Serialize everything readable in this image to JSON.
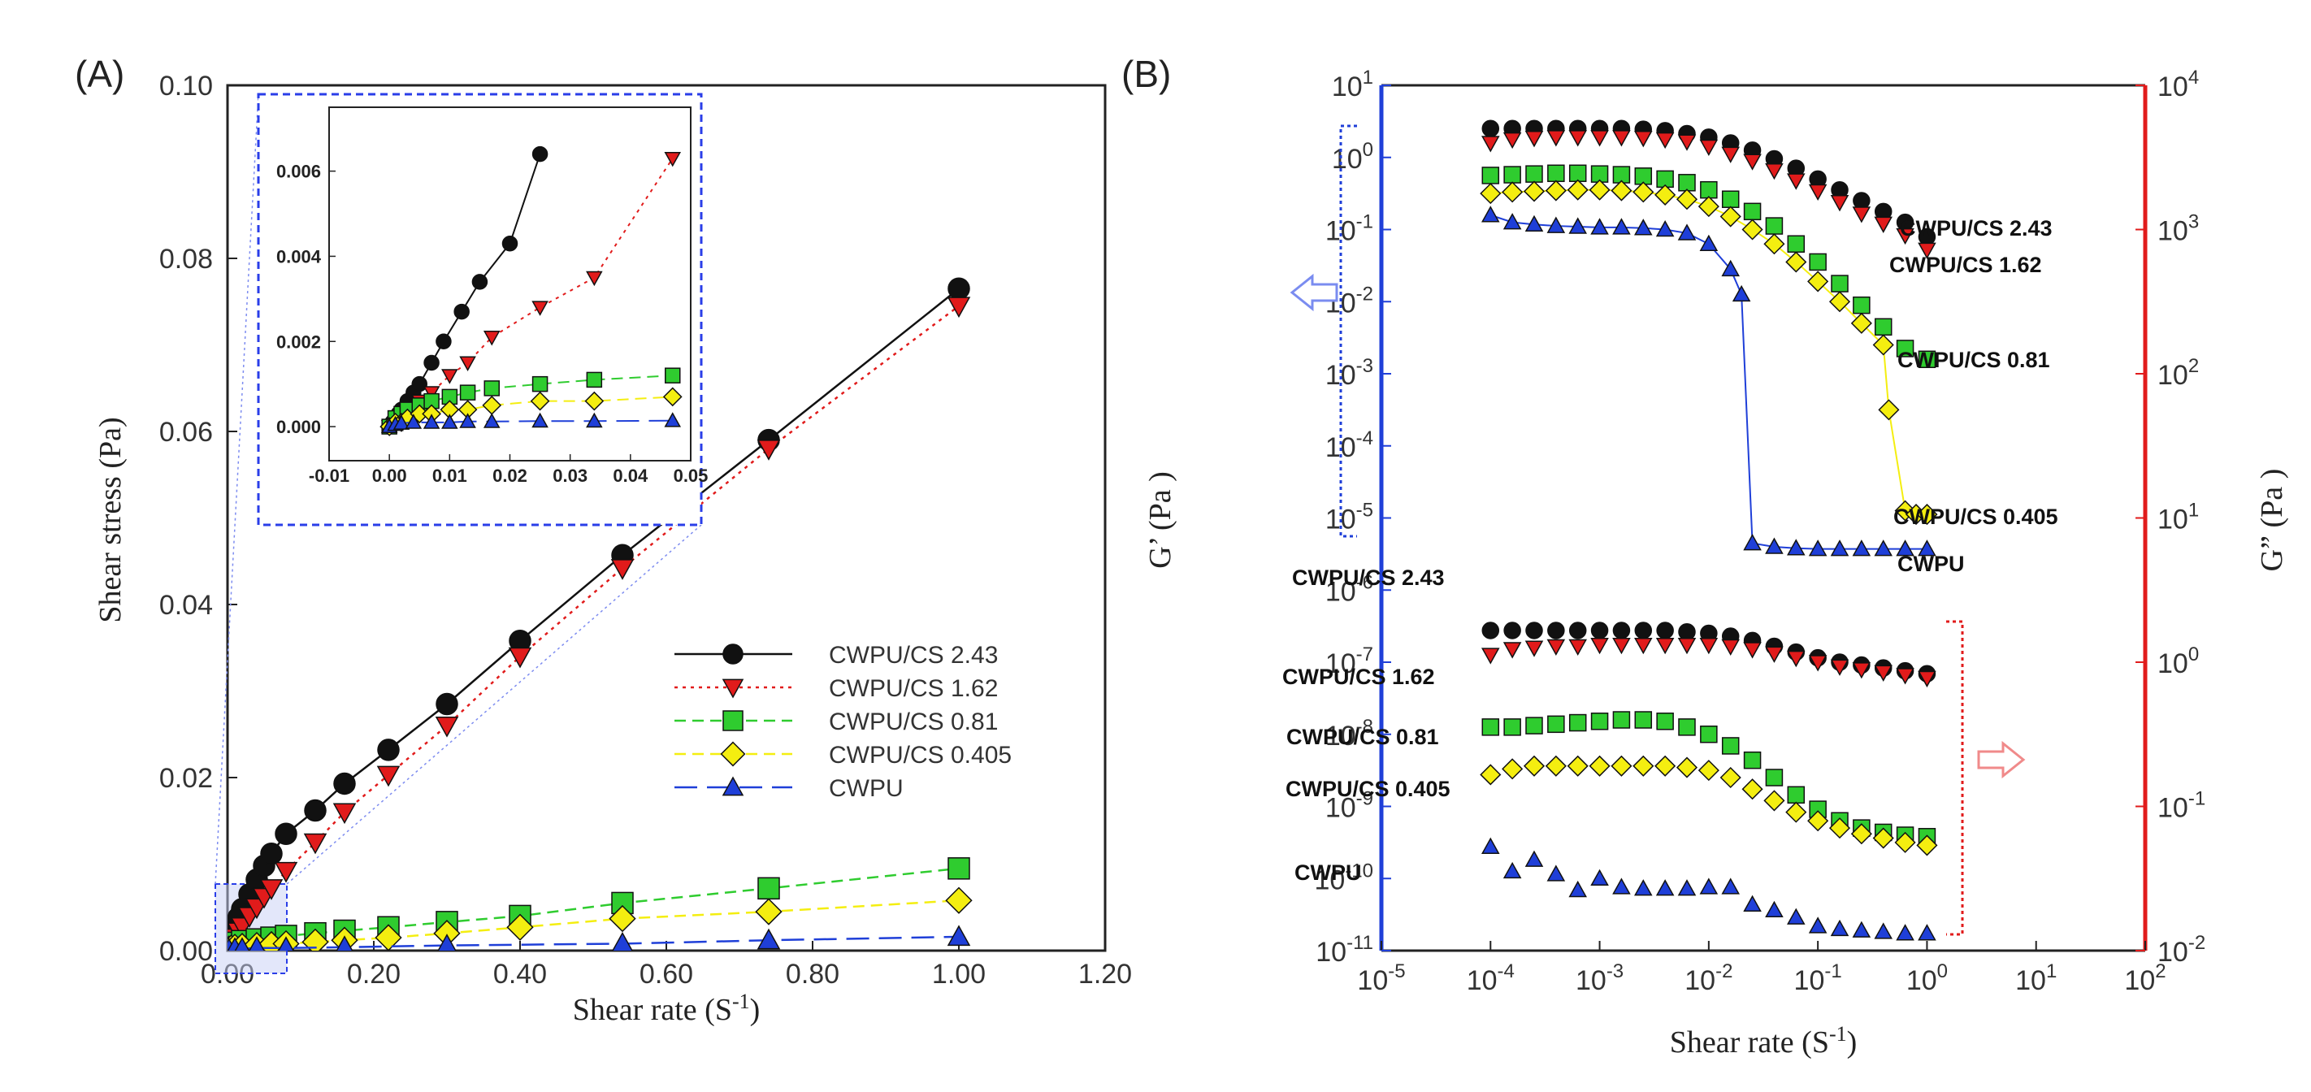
{
  "colors": {
    "s243": "#111111",
    "s162": "#e11b1b",
    "s081": "#2fcc2f",
    "s0405": "#f4ee10",
    "cwpu": "#1f3fd8",
    "axis_left": "#1f3fd8",
    "axis_right": "#e11b1b",
    "inset_box": "#2a3ee8"
  },
  "icons": {
    "arrow_left": "hollow-arrow-left-icon",
    "arrow_right": "hollow-arrow-right-icon"
  },
  "chart_data": [
    {
      "type": "line",
      "panel_label": "(A)",
      "xlabel": "Shear rate (S",
      "xlabel_sup": "-1",
      "xlabel_close": ")",
      "ylabel": "Shear stress (Pa)",
      "xlim": [
        0,
        1.2
      ],
      "ylim": [
        0,
        0.1
      ],
      "x_ticks": [
        "0.00",
        "0.20",
        "0.40",
        "0.60",
        "0.80",
        "1.00",
        "1.20"
      ],
      "y_ticks": [
        "0.00",
        "0.02",
        "0.04",
        "0.06",
        "0.08",
        "0.10"
      ],
      "legend_position": "center-right",
      "series": [
        {
          "name": "CWPU/CS 2.43",
          "marker": "circle",
          "line": "solid",
          "x": [
            0.002,
            0.005,
            0.01,
            0.015,
            0.02,
            0.03,
            0.04,
            0.05,
            0.06,
            0.08,
            0.12,
            0.16,
            0.22,
            0.3,
            0.4,
            0.54,
            0.74,
            1.0
          ],
          "y": [
            0.0005,
            0.001,
            0.0025,
            0.0038,
            0.0048,
            0.0065,
            0.0082,
            0.0098,
            0.0112,
            0.0135,
            0.0162,
            0.0193,
            0.0232,
            0.0285,
            0.0358,
            0.0457,
            0.059,
            0.0765
          ]
        },
        {
          "name": "CWPU/CS 1.62",
          "marker": "triangle-down",
          "line": "dotted",
          "x": [
            0.002,
            0.005,
            0.01,
            0.015,
            0.02,
            0.03,
            0.04,
            0.05,
            0.06,
            0.08,
            0.12,
            0.16,
            0.22,
            0.3,
            0.4,
            0.54,
            0.74,
            1.0
          ],
          "y": [
            0.0003,
            0.0008,
            0.0015,
            0.0022,
            0.0028,
            0.004,
            0.005,
            0.0062,
            0.0072,
            0.0092,
            0.0125,
            0.016,
            0.0203,
            0.026,
            0.034,
            0.0442,
            0.058,
            0.0745
          ]
        },
        {
          "name": "CWPU/CS 0.81",
          "marker": "square",
          "line": "dashed",
          "x": [
            0.002,
            0.005,
            0.01,
            0.02,
            0.04,
            0.06,
            0.08,
            0.12,
            0.16,
            0.22,
            0.3,
            0.4,
            0.54,
            0.74,
            1.0
          ],
          "y": [
            0.0003,
            0.0006,
            0.0009,
            0.0011,
            0.0013,
            0.0015,
            0.0017,
            0.002,
            0.0023,
            0.0027,
            0.0033,
            0.004,
            0.0055,
            0.0072,
            0.0095
          ]
        },
        {
          "name": "CWPU/CS 0.405",
          "marker": "diamond",
          "line": "dashed",
          "x": [
            0.002,
            0.005,
            0.01,
            0.02,
            0.04,
            0.06,
            0.08,
            0.12,
            0.16,
            0.22,
            0.3,
            0.4,
            0.54,
            0.74,
            1.0
          ],
          "y": [
            0.0002,
            0.0003,
            0.0004,
            0.0005,
            0.0006,
            0.0007,
            0.0008,
            0.001,
            0.0012,
            0.0015,
            0.002,
            0.0027,
            0.0037,
            0.0045,
            0.0058
          ]
        },
        {
          "name": "CWPU",
          "marker": "triangle-up",
          "line": "longdash",
          "x": [
            0.002,
            0.01,
            0.02,
            0.04,
            0.08,
            0.16,
            0.3,
            0.54,
            0.74,
            1.0
          ],
          "y": [
            0.0001,
            0.0002,
            0.0002,
            0.0003,
            0.0003,
            0.0004,
            0.0006,
            0.0008,
            0.0012,
            0.0016
          ]
        }
      ],
      "inset": {
        "xlim": [
          -0.01,
          0.05
        ],
        "ylim": [
          -0.0008,
          0.0075
        ],
        "x_ticks": [
          "-0.01",
          "0.00",
          "0.01",
          "0.02",
          "0.03",
          "0.04",
          "0.05"
        ],
        "y_ticks": [
          "0.000",
          "0.002",
          "0.004",
          "0.006"
        ],
        "series": [
          {
            "name": "CWPU/CS 2.43",
            "x": [
              0,
              0.0005,
              0.001,
              0.0015,
              0.002,
              0.003,
              0.004,
              0.005,
              0.007,
              0.009,
              0.012,
              0.015,
              0.02,
              0.025
            ],
            "y": [
              0,
              0.0001,
              0.0002,
              0.0003,
              0.0004,
              0.0006,
              0.0008,
              0.001,
              0.0015,
              0.002,
              0.0027,
              0.0034,
              0.0043,
              0.0064
            ]
          },
          {
            "name": "CWPU/CS 1.62",
            "x": [
              0,
              0.001,
              0.002,
              0.003,
              0.005,
              0.007,
              0.01,
              0.013,
              0.017,
              0.025,
              0.034,
              0.047
            ],
            "y": [
              0,
              0.0001,
              0.0002,
              0.0003,
              0.0006,
              0.0008,
              0.0012,
              0.0015,
              0.0021,
              0.0028,
              0.0035,
              0.0063
            ]
          },
          {
            "name": "CWPU/CS 0.81",
            "x": [
              0,
              0.001,
              0.002,
              0.003,
              0.005,
              0.007,
              0.01,
              0.013,
              0.017,
              0.025,
              0.034,
              0.047
            ],
            "y": [
              0,
              0.0002,
              0.0003,
              0.0004,
              0.0005,
              0.0006,
              0.0007,
              0.0008,
              0.0009,
              0.001,
              0.0011,
              0.0012
            ]
          },
          {
            "name": "CWPU/CS 0.405",
            "x": [
              0,
              0.001,
              0.002,
              0.003,
              0.005,
              0.007,
              0.01,
              0.013,
              0.017,
              0.025,
              0.034,
              0.047
            ],
            "y": [
              0,
              0.0001,
              0.0001,
              0.0002,
              0.0003,
              0.0003,
              0.0004,
              0.0004,
              0.0005,
              0.0006,
              0.0006,
              0.0007
            ]
          },
          {
            "name": "CWPU",
            "x": [
              0,
              0.001,
              0.002,
              0.004,
              0.007,
              0.01,
              0.013,
              0.017,
              0.025,
              0.034,
              0.047
            ],
            "y": [
              0,
              5e-05,
              8e-05,
              0.0001,
              0.0001,
              0.0001,
              0.00012,
              0.00012,
              0.00013,
              0.00013,
              0.00014
            ]
          }
        ]
      }
    },
    {
      "type": "scatter",
      "panel_label": "(B)",
      "xlabel": "Shear rate (S",
      "xlabel_sup": "-1",
      "xlabel_close": ")",
      "ylabel_left": "G’ (Pa )",
      "ylabel_right": "G” (Pa )",
      "x_scale": "log",
      "xlim_exp": [
        -5,
        2
      ],
      "y_left_scale": "log",
      "ylim_left_exp": [
        -11,
        1
      ],
      "y_right_scale": "log",
      "ylim_right_exp": [
        -2,
        4
      ],
      "x_ticks_exp": [
        "-5",
        "-4",
        "-3",
        "-2",
        "-1",
        "0",
        "1",
        "2"
      ],
      "y_left_ticks_exp": [
        "1",
        "0",
        "-1",
        "-2",
        "-3",
        "-4",
        "-5",
        "-6",
        "-7",
        "-8",
        "-9",
        "-10",
        "-11"
      ],
      "y_right_ticks_exp": [
        "4",
        "3",
        "2",
        "1",
        "0",
        "-1",
        "-2"
      ],
      "tick_base": "10",
      "gprime_series": [
        {
          "name": "CWPU/CS 2.43",
          "marker": "circle",
          "connected": false,
          "x_log": [
            -4,
            -3.8,
            -3.6,
            -3.4,
            -3.2,
            -3,
            -2.8,
            -2.6,
            -2.4,
            -2.2,
            -2,
            -1.8,
            -1.6,
            -1.4,
            -1.2,
            -1,
            -0.8,
            -0.6,
            -0.4,
            -0.2,
            0
          ],
          "y_log": [
            0.4,
            0.4,
            0.4,
            0.4,
            0.4,
            0.4,
            0.4,
            0.39,
            0.37,
            0.33,
            0.28,
            0.2,
            0.1,
            -0.02,
            -0.15,
            -0.3,
            -0.45,
            -0.6,
            -0.75,
            -0.9,
            -1.1
          ]
        },
        {
          "name": "CWPU/CS 1.62",
          "marker": "triangle-down",
          "connected": false,
          "x_log": [
            -4,
            -3.8,
            -3.6,
            -3.4,
            -3.2,
            -3,
            -2.8,
            -2.6,
            -2.4,
            -2.2,
            -2,
            -1.8,
            -1.6,
            -1.4,
            -1.2,
            -1,
            -0.8,
            -0.6,
            -0.4,
            -0.2,
            0
          ],
          "y_log": [
            0.2,
            0.25,
            0.27,
            0.28,
            0.28,
            0.28,
            0.28,
            0.27,
            0.25,
            0.22,
            0.15,
            0.05,
            -0.05,
            -0.18,
            -0.32,
            -0.47,
            -0.62,
            -0.78,
            -0.92,
            -1.08,
            -1.28
          ]
        },
        {
          "name": "CWPU/CS 0.81",
          "marker": "square",
          "connected": false,
          "x_log": [
            -4,
            -3.8,
            -3.6,
            -3.4,
            -3.2,
            -3,
            -2.8,
            -2.6,
            -2.4,
            -2.2,
            -2,
            -1.8,
            -1.6,
            -1.4,
            -1.2,
            -1,
            -0.8,
            -0.6,
            -0.4,
            -0.2,
            0
          ],
          "y_log": [
            -0.25,
            -0.24,
            -0.23,
            -0.22,
            -0.22,
            -0.23,
            -0.24,
            -0.26,
            -0.3,
            -0.35,
            -0.45,
            -0.58,
            -0.75,
            -0.95,
            -1.2,
            -1.45,
            -1.75,
            -2.05,
            -2.35,
            -2.65,
            -2.8
          ]
        },
        {
          "name": "CWPU/CS 0.405",
          "marker": "diamond",
          "connected": true,
          "x_log": [
            -4,
            -3.8,
            -3.6,
            -3.4,
            -3.2,
            -3,
            -2.8,
            -2.6,
            -2.4,
            -2.2,
            -2,
            -1.8,
            -1.6,
            -1.4,
            -1.2,
            -1,
            -0.8,
            -0.6,
            -0.4,
            -0.35,
            -0.2,
            -0.1,
            0
          ],
          "y_log": [
            -0.5,
            -0.48,
            -0.47,
            -0.46,
            -0.45,
            -0.45,
            -0.46,
            -0.48,
            -0.52,
            -0.58,
            -0.68,
            -0.82,
            -1.0,
            -1.2,
            -1.45,
            -1.72,
            -2.0,
            -2.3,
            -2.6,
            -3.5,
            -4.9,
            -4.95,
            -4.95
          ]
        },
        {
          "name": "CWPU",
          "marker": "triangle-up",
          "connected": true,
          "x_log": [
            -4,
            -3.8,
            -3.6,
            -3.4,
            -3.2,
            -3,
            -2.8,
            -2.6,
            -2.4,
            -2.2,
            -2,
            -1.8,
            -1.7,
            -1.6,
            -1.4,
            -1.2,
            -1,
            -0.8,
            -0.6,
            -0.4,
            -0.2,
            0
          ],
          "y_log": [
            -0.8,
            -0.9,
            -0.93,
            -0.95,
            -0.96,
            -0.97,
            -0.97,
            -0.98,
            -1.0,
            -1.05,
            -1.2,
            -1.55,
            -1.9,
            -5.35,
            -5.4,
            -5.42,
            -5.43,
            -5.43,
            -5.43,
            -5.43,
            -5.43,
            -5.43
          ]
        }
      ],
      "gdoubleprime_series": [
        {
          "name": "CWPU/CS 2.43",
          "marker": "circle",
          "x_log": [
            -4,
            -3.8,
            -3.6,
            -3.4,
            -3.2,
            -3,
            -2.8,
            -2.6,
            -2.4,
            -2.2,
            -2,
            -1.8,
            -1.6,
            -1.4,
            -1.2,
            -1,
            -0.8,
            -0.6,
            -0.4,
            -0.2,
            0
          ],
          "y_log": [
            0.22,
            0.22,
            0.22,
            0.22,
            0.22,
            0.22,
            0.22,
            0.22,
            0.22,
            0.21,
            0.2,
            0.18,
            0.15,
            0.11,
            0.07,
            0.03,
            0,
            -0.02,
            -0.04,
            -0.06,
            -0.08
          ]
        },
        {
          "name": "CWPU/CS 1.62",
          "marker": "triangle-down",
          "x_log": [
            -4,
            -3.8,
            -3.6,
            -3.4,
            -3.2,
            -3,
            -2.8,
            -2.6,
            -2.4,
            -2.2,
            -2,
            -1.8,
            -1.6,
            -1.4,
            -1.2,
            -1,
            -0.8,
            -0.6,
            -0.4,
            -0.2,
            0
          ],
          "y_log": [
            0.05,
            0.09,
            0.1,
            0.11,
            0.11,
            0.12,
            0.12,
            0.12,
            0.12,
            0.12,
            0.12,
            0.11,
            0.09,
            0.06,
            0.03,
            0,
            -0.03,
            -0.05,
            -0.07,
            -0.09,
            -0.11
          ]
        },
        {
          "name": "CWPU/CS 0.81",
          "marker": "square",
          "x_log": [
            -4,
            -3.8,
            -3.6,
            -3.4,
            -3.2,
            -3,
            -2.8,
            -2.6,
            -2.4,
            -2.2,
            -2,
            -1.8,
            -1.6,
            -1.4,
            -1.2,
            -1,
            -0.8,
            -0.6,
            -0.4,
            -0.2,
            0
          ],
          "y_log": [
            -0.45,
            -0.45,
            -0.44,
            -0.43,
            -0.42,
            -0.41,
            -0.4,
            -0.4,
            -0.41,
            -0.45,
            -0.5,
            -0.58,
            -0.68,
            -0.8,
            -0.92,
            -1.02,
            -1.1,
            -1.15,
            -1.18,
            -1.2,
            -1.21
          ]
        },
        {
          "name": "CWPU/CS 0.405",
          "marker": "diamond",
          "x_log": [
            -4,
            -3.8,
            -3.6,
            -3.4,
            -3.2,
            -3,
            -2.8,
            -2.6,
            -2.4,
            -2.2,
            -2,
            -1.8,
            -1.6,
            -1.4,
            -1.2,
            -1,
            -0.8,
            -0.6,
            -0.4,
            -0.2,
            0
          ],
          "y_log": [
            -0.78,
            -0.74,
            -0.72,
            -0.72,
            -0.72,
            -0.72,
            -0.72,
            -0.72,
            -0.72,
            -0.73,
            -0.75,
            -0.8,
            -0.88,
            -0.96,
            -1.04,
            -1.1,
            -1.15,
            -1.19,
            -1.22,
            -1.25,
            -1.27
          ]
        },
        {
          "name": "CWPU",
          "marker": "triangle-up",
          "x_log": [
            -4,
            -3.8,
            -3.6,
            -3.4,
            -3.2,
            -3,
            -2.8,
            -2.6,
            -2.4,
            -2.2,
            -2,
            -1.8,
            -1.6,
            -1.4,
            -1.2,
            -1,
            -0.8,
            -0.6,
            -0.4,
            -0.2,
            0
          ],
          "y_log": [
            -1.28,
            -1.45,
            -1.37,
            -1.47,
            -1.58,
            -1.5,
            -1.56,
            -1.57,
            -1.57,
            -1.57,
            -1.56,
            -1.56,
            -1.68,
            -1.72,
            -1.77,
            -1.83,
            -1.85,
            -1.86,
            -1.87,
            -1.88,
            -1.88
          ]
        }
      ],
      "annotations_gprime": [
        "CWPU/CS 2.43",
        "CWPU/CS 1.62",
        "CWPU/CS 0.81",
        "CWPU/CS 0.405",
        "CWPU"
      ],
      "annotations_gdoubleprime": [
        "CWPU/CS 2.43",
        "CWPU/CS 1.62",
        "CWPU/CS 0.81",
        "CWPU/CS 0.405",
        "CWPU"
      ]
    }
  ]
}
